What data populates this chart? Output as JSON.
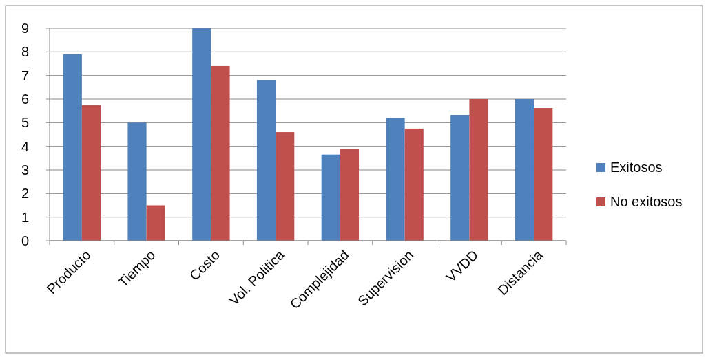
{
  "chart_data": {
    "type": "bar",
    "categories": [
      "Producto",
      "Tiempo",
      "Costo",
      "Vol. Politica",
      "Complejidad",
      "Supervision",
      "VVDD",
      "Distancia"
    ],
    "series": [
      {
        "name": "Exitosos",
        "color": "#4f81bd",
        "values": [
          7.9,
          5,
          9,
          6.8,
          3.65,
          5.2,
          5.33,
          6
        ]
      },
      {
        "name": "No exitosos",
        "color": "#c0504d",
        "values": [
          5.75,
          1.5,
          7.4,
          4.6,
          3.9,
          4.75,
          6,
          5.62
        ]
      }
    ],
    "ylim": [
      0,
      9
    ],
    "yticks": [
      0,
      1,
      2,
      3,
      4,
      5,
      6,
      7,
      8,
      9
    ],
    "grid": "y",
    "legend": "right"
  }
}
